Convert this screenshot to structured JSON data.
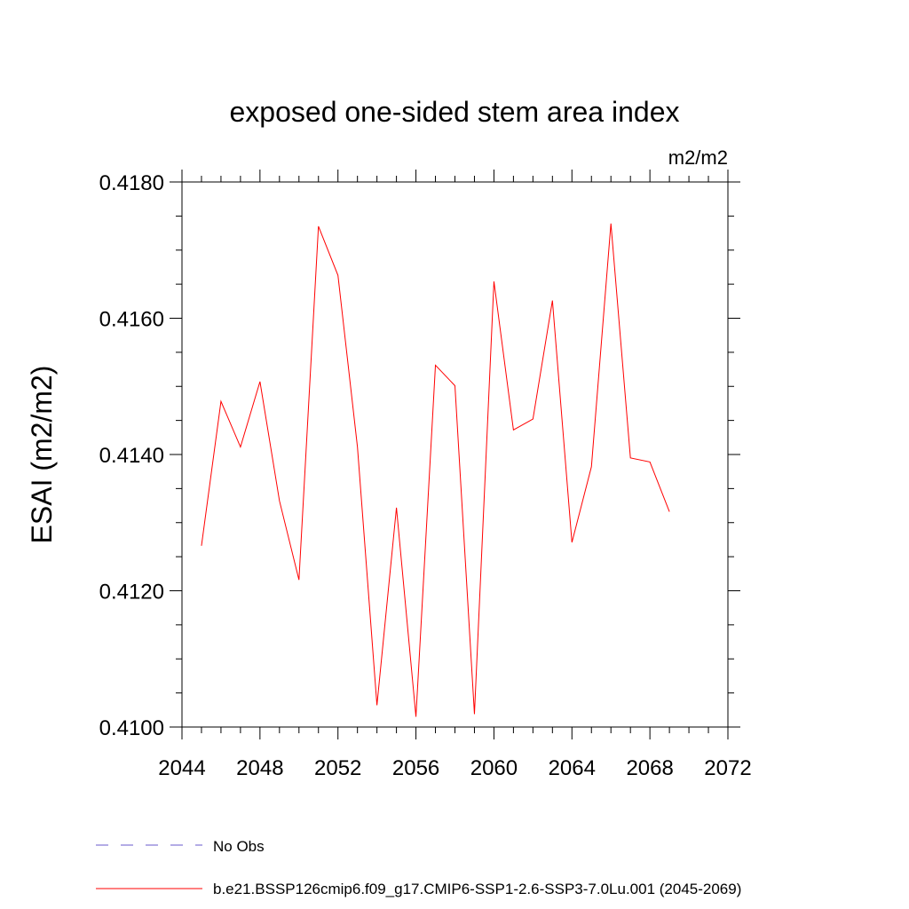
{
  "chart_data": {
    "type": "line",
    "title": "exposed one-sided stem area index",
    "units_label": "m2/m2",
    "ylabel": "ESAI  (m2/m2)",
    "xlabel": "",
    "xlim": [
      2044,
      2072
    ],
    "ylim": [
      0.41,
      0.418
    ],
    "x_ticks": [
      2044,
      2048,
      2052,
      2056,
      2060,
      2064,
      2068,
      2072
    ],
    "x_tick_labels": [
      "2044",
      "2048",
      "2052",
      "2056",
      "2060",
      "2064",
      "2068",
      "2072"
    ],
    "y_ticks": [
      0.41,
      0.412,
      0.414,
      0.416,
      0.418
    ],
    "y_tick_labels": [
      "0.4100",
      "0.4120",
      "0.4140",
      "0.4160",
      "0.4180"
    ],
    "grid": false,
    "legend_position": "bottom",
    "series": [
      {
        "name": "b.e21.BSSP126cmip6.f09_g17.CMIP6-SSP1-2.6-SSP3-7.0Lu.001 (2045-2069)",
        "color": "#ff0000",
        "style": "solid",
        "x": [
          2045,
          2046,
          2047,
          2048,
          2049,
          2050,
          2051,
          2052,
          2053,
          2054,
          2055,
          2056,
          2057,
          2058,
          2059,
          2060,
          2061,
          2062,
          2063,
          2064,
          2065,
          2066,
          2067,
          2068,
          2069
        ],
        "values": [
          0.41266,
          0.41478,
          0.41411,
          0.41507,
          0.41332,
          0.41216,
          0.41735,
          0.41663,
          0.41411,
          0.41032,
          0.41322,
          0.41015,
          0.41531,
          0.41501,
          0.41019,
          0.41654,
          0.41436,
          0.41452,
          0.41626,
          0.41271,
          0.41382,
          0.41739,
          0.41395,
          0.41389,
          0.41316
        ]
      }
    ],
    "legend": [
      {
        "label": "No Obs",
        "color": "#6a5acd",
        "style": "dashed"
      },
      {
        "label": "b.e21.BSSP126cmip6.f09_g17.CMIP6-SSP1-2.6-SSP3-7.0Lu.001 (2045-2069)",
        "color": "#ff0000",
        "style": "solid"
      }
    ]
  }
}
